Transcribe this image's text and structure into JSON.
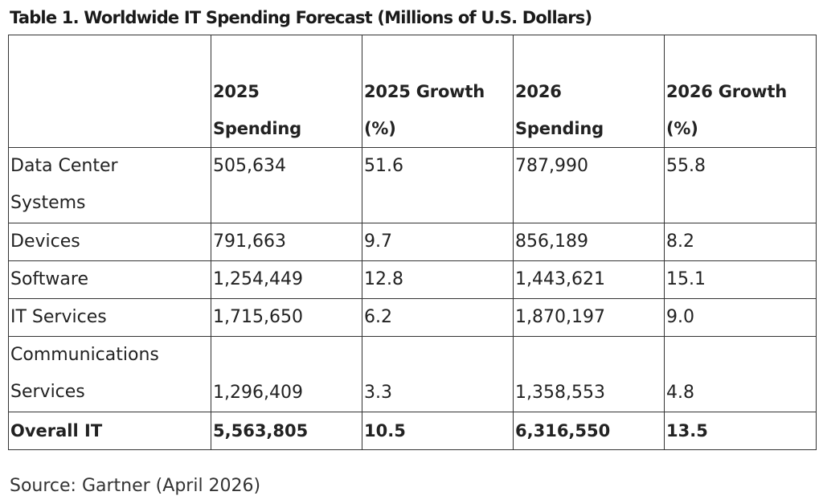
{
  "title": "Table 1. Worldwide IT Spending Forecast (Millions of U.S. Dollars)",
  "table": {
    "headers": [
      [
        "",
        ""
      ],
      [
        "2025",
        "Spending"
      ],
      [
        "2025 Growth",
        "(%)"
      ],
      [
        "2026",
        "Spending"
      ],
      [
        "2026 Growth",
        "(%)"
      ]
    ],
    "rows": [
      {
        "segment": [
          "Data Center",
          "Systems"
        ],
        "spending_2025": "505,634",
        "growth_2025": "51.6",
        "spending_2026": "787,990",
        "growth_2026": "55.8"
      },
      {
        "segment": [
          "Devices"
        ],
        "spending_2025": "791,663",
        "growth_2025": "9.7",
        "spending_2026": "856,189",
        "growth_2026": "8.2"
      },
      {
        "segment": [
          "Software"
        ],
        "spending_2025": "1,254,449",
        "growth_2025": "12.8",
        "spending_2026": "1,443,621",
        "growth_2026": "15.1"
      },
      {
        "segment": [
          "IT Services"
        ],
        "spending_2025": "1,715,650",
        "growth_2025": "6.2",
        "spending_2026": "1,870,197",
        "growth_2026": "9.0"
      },
      {
        "segment": [
          "Communications",
          "Services"
        ],
        "spending_2025": "1,296,409",
        "growth_2025": "3.3",
        "spending_2026": "1,358,553",
        "growth_2026": "4.8"
      }
    ],
    "total": {
      "segment": "Overall IT",
      "spending_2025": "5,563,805",
      "growth_2025": "10.5",
      "spending_2026": "6,316,550",
      "growth_2026": "13.5"
    }
  },
  "source": "Source: Gartner (April 2026)"
}
